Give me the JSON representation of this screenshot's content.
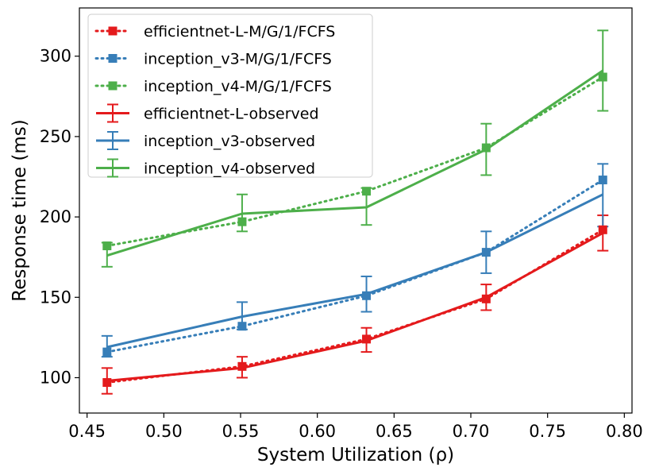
{
  "chart_data": {
    "type": "line",
    "title": "",
    "xlabel": "System Utilization (ρ)",
    "ylabel": "Response time (ms)",
    "xlim": [
      0.445,
      0.805
    ],
    "ylim": [
      78,
      330
    ],
    "xticks": [
      0.45,
      0.5,
      0.55,
      0.6,
      0.65,
      0.7,
      0.75,
      0.8
    ],
    "xtick_labels": [
      "0.45",
      "0.50",
      "0.55",
      "0.60",
      "0.65",
      "0.70",
      "0.75",
      "0.80"
    ],
    "yticks": [
      100,
      150,
      200,
      250,
      300
    ],
    "ytick_labels": [
      "100",
      "150",
      "200",
      "250",
      "300"
    ],
    "x": [
      0.463,
      0.551,
      0.632,
      0.71,
      0.786
    ],
    "legend_position": "top-left",
    "series": [
      {
        "name": "efficientnet-L-M/G/1/FCFS",
        "kind": "model",
        "color": "#e41a1c",
        "values": [
          97,
          107,
          124,
          149,
          192
        ]
      },
      {
        "name": "inception_v3-M/G/1/FCFS",
        "kind": "model",
        "color": "#377eb8",
        "values": [
          116,
          132,
          151,
          178,
          223
        ]
      },
      {
        "name": "inception_v4-M/G/1/FCFS",
        "kind": "model",
        "color": "#4daf4a",
        "values": [
          182,
          197,
          216,
          243,
          287
        ]
      },
      {
        "name": "efficientnet-L-observed",
        "kind": "observed",
        "color": "#e41a1c",
        "values": [
          98,
          106,
          123,
          150,
          190
        ],
        "err_low": [
          90,
          100,
          116,
          142,
          179
        ],
        "err_high": [
          106,
          113,
          131,
          158,
          201
        ]
      },
      {
        "name": "inception_v3-observed",
        "kind": "observed",
        "color": "#377eb8",
        "values": [
          119,
          138,
          152,
          178,
          214
        ],
        "err_low": [
          113,
          130,
          141,
          165,
          194
        ],
        "err_high": [
          126,
          147,
          163,
          191,
          233
        ]
      },
      {
        "name": "inception_v4-observed",
        "kind": "observed",
        "color": "#4daf4a",
        "values": [
          176,
          202,
          206,
          242,
          291
        ],
        "err_low": [
          169,
          191,
          195,
          226,
          266
        ],
        "err_high": [
          184,
          214,
          218,
          258,
          316
        ]
      }
    ]
  }
}
